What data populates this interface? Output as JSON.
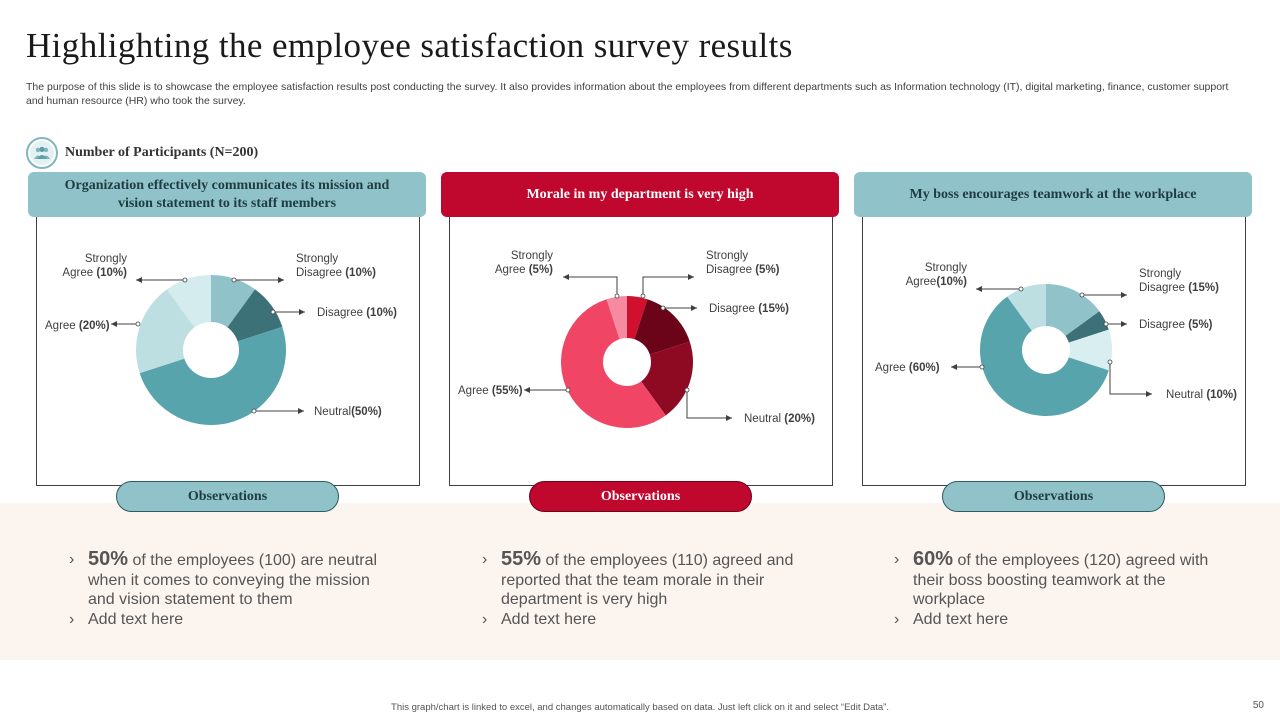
{
  "title": "Highlighting the employee satisfaction survey results",
  "subtitle": "The purpose of this slide is to showcase the employee satisfaction results post conducting the survey. It also provides information about the employees from different departments such as Information technology (IT), digital marketing, finance, customer support and human resource (HR) who took the survey.",
  "participants_label": "Number of Participants (N=200)",
  "observations_label": "Observations",
  "add_text": "Add text here",
  "footer": "This graph/chart is linked to excel, and changes automatically based on data. Just left click on it and select “Edit Data”.",
  "page_number": "50",
  "colors": {
    "teal_header": "#8fc3c9",
    "red_header": "#c0072d",
    "band": "#fcf4ef"
  },
  "panels": [
    {
      "header": "Organization effectively communicates its mission and vision statement to its staff members",
      "theme": "teal",
      "observation": {
        "percent": "50%",
        "text": " of the employees (100) are neutral when it comes to conveying the mission and vision statement to them"
      }
    },
    {
      "header": "Morale in my department is very high",
      "theme": "red",
      "observation": {
        "percent": "55%",
        "text": " of the employees (110) agreed and reported that the team morale in their department is very high"
      }
    },
    {
      "header": "My boss encourages teamwork at the workplace",
      "theme": "teal",
      "observation": {
        "percent": "60%",
        "text": " of the employees (120) agreed with their boss boosting teamwork at the workplace"
      }
    }
  ],
  "chart_data": [
    {
      "type": "pie",
      "title": "Organization effectively communicates its mission and vision statement to its staff members",
      "slices": [
        {
          "label": "Strongly Disagree",
          "value": 10,
          "color": "#8fc3c9",
          "label_text": [
            "Strongly",
            "Disagree (10%)"
          ]
        },
        {
          "label": "Disagree",
          "value": 10,
          "color": "#3c7177",
          "label_text": [
            "Disagree (10%)"
          ]
        },
        {
          "label": "Neutral",
          "value": 50,
          "color": "#57a4ad",
          "label_text": [
            "Neutral(50%)"
          ]
        },
        {
          "label": "Agree",
          "value": 20,
          "color": "#bddfe2",
          "label_text": [
            "Agree (20%)"
          ]
        },
        {
          "label": "Strongly Agree",
          "value": 10,
          "color": "#d5ecee",
          "label_text": [
            "Strongly",
            "Agree (10%)"
          ]
        }
      ]
    },
    {
      "type": "pie",
      "title": "Morale in my department is very high",
      "slices": [
        {
          "label": "Strongly Disagree",
          "value": 5,
          "color": "#d1102e",
          "label_text": [
            "Strongly",
            "Disagree (5%)"
          ]
        },
        {
          "label": "Disagree",
          "value": 15,
          "color": "#6b0418",
          "label_text": [
            "Disagree (15%)"
          ]
        },
        {
          "label": "Neutral",
          "value": 20,
          "color": "#8e0a22",
          "label_text": [
            "Neutral (20%)"
          ]
        },
        {
          "label": "Agree",
          "value": 55,
          "color": "#f04565",
          "label_text": [
            "Agree (55%)"
          ]
        },
        {
          "label": "Strongly Agree",
          "value": 5,
          "color": "#f58aa0",
          "label_text": [
            "Strongly",
            "Agree (5%)"
          ]
        }
      ]
    },
    {
      "type": "pie",
      "title": "My boss encourages teamwork at the workplace",
      "slices": [
        {
          "label": "Strongly Disagree",
          "value": 15,
          "color": "#8fc3c9",
          "label_text": [
            "Strongly",
            "Disagree (15%)"
          ]
        },
        {
          "label": "Disagree",
          "value": 5,
          "color": "#3c7177",
          "label_text": [
            "Disagree (5%)"
          ]
        },
        {
          "label": "Neutral",
          "value": 10,
          "color": "#d9eef0",
          "label_text": [
            "Neutral (10%)"
          ]
        },
        {
          "label": "Agree",
          "value": 60,
          "color": "#57a4ad",
          "label_text": [
            "Agree (60%)"
          ]
        },
        {
          "label": "Strongly Agree",
          "value": 10,
          "color": "#bddfe2",
          "label_text": [
            "Strongly",
            "Agree(10%)"
          ]
        }
      ]
    }
  ]
}
